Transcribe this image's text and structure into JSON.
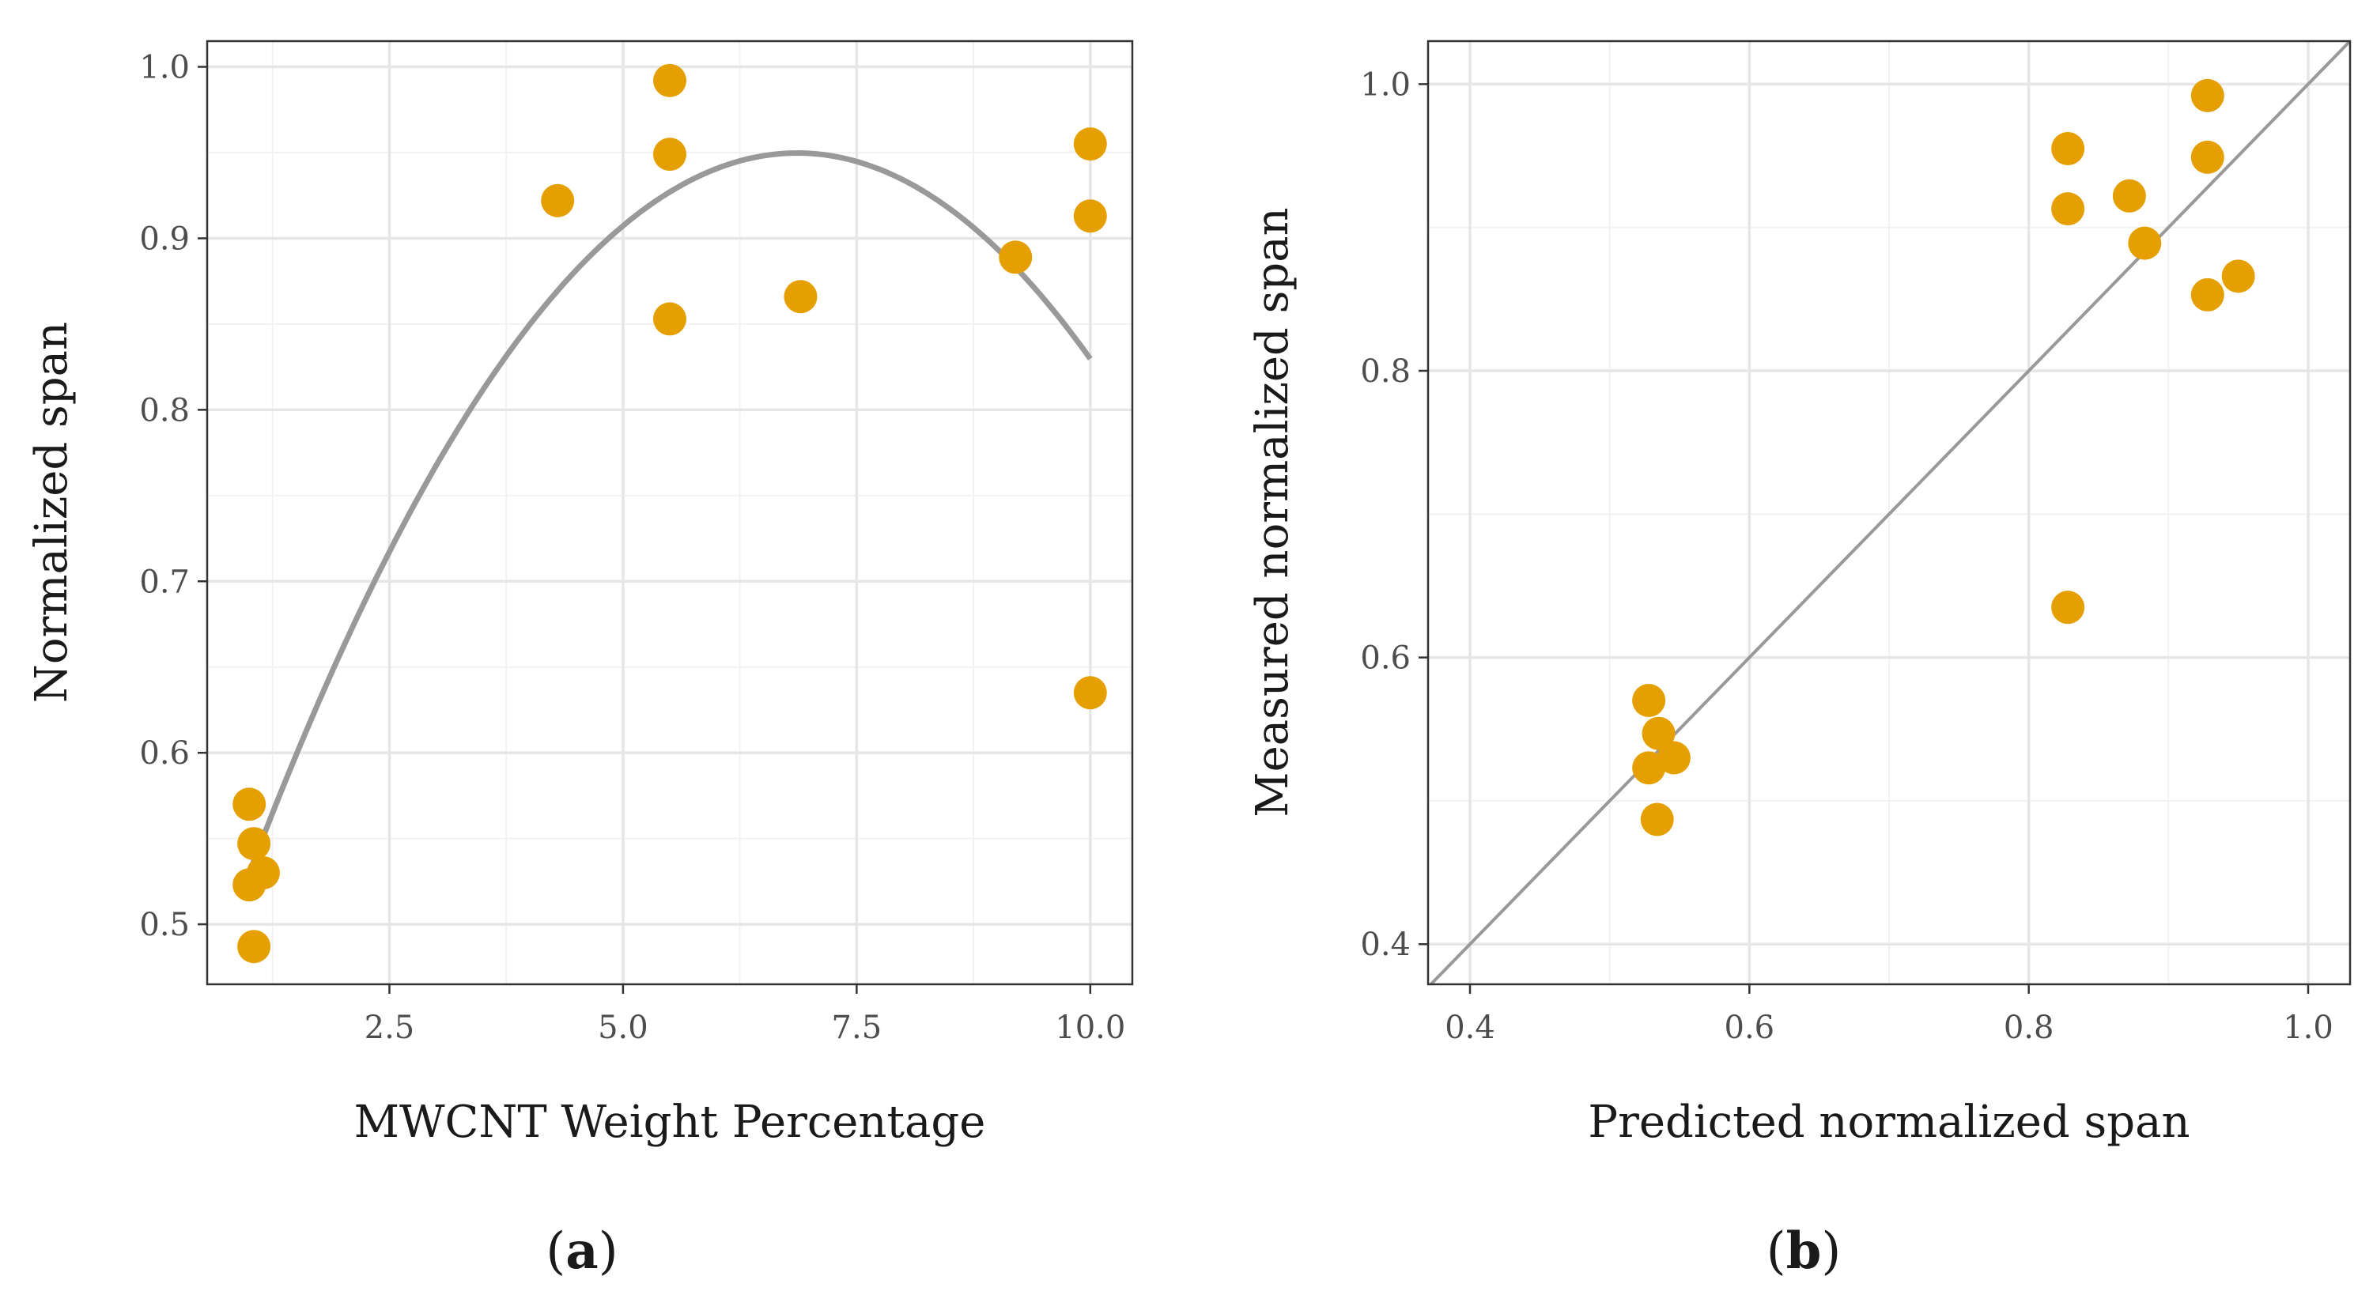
{
  "chart_data": [
    {
      "type": "scatter",
      "panel": "a",
      "caption_letter": "a",
      "xlabel": "MWCNT Weight Percentage",
      "ylabel": "Normalized span",
      "xlim": [
        0.55,
        10.45
      ],
      "ylim": [
        0.465,
        1.015
      ],
      "xticks": [
        2.5,
        5.0,
        7.5,
        10.0
      ],
      "xtick_labels": [
        "2.5",
        "5.0",
        "7.5",
        "10.0"
      ],
      "yticks": [
        0.5,
        0.6,
        0.7,
        0.8,
        0.9,
        1.0
      ],
      "ytick_labels": [
        "0.5",
        "0.6",
        "0.7",
        "0.8",
        "0.9",
        "1.0"
      ],
      "grid": true,
      "points": [
        {
          "x": 1.0,
          "y": 0.57
        },
        {
          "x": 1.05,
          "y": 0.547
        },
        {
          "x": 1.15,
          "y": 0.53
        },
        {
          "x": 1.0,
          "y": 0.523
        },
        {
          "x": 1.05,
          "y": 0.487
        },
        {
          "x": 4.3,
          "y": 0.922
        },
        {
          "x": 5.5,
          "y": 0.992
        },
        {
          "x": 5.5,
          "y": 0.949
        },
        {
          "x": 5.5,
          "y": 0.853
        },
        {
          "x": 6.9,
          "y": 0.866
        },
        {
          "x": 9.2,
          "y": 0.889
        },
        {
          "x": 10.0,
          "y": 0.955
        },
        {
          "x": 10.0,
          "y": 0.913
        },
        {
          "x": 10.0,
          "y": 0.635
        }
      ],
      "fit_curve": {
        "type": "quadratic",
        "points": [
          {
            "x": 1.0,
            "y": 0.53
          },
          {
            "x": 2.5,
            "y": 0.718
          },
          {
            "x": 5.0,
            "y": 0.905
          },
          {
            "x": 6.85,
            "y": 0.95
          },
          {
            "x": 8.5,
            "y": 0.92
          },
          {
            "x": 10.0,
            "y": 0.828
          }
        ]
      },
      "colors": {
        "points": "#E69F00",
        "line": "#999999"
      }
    },
    {
      "type": "scatter",
      "panel": "b",
      "caption_letter": "b",
      "xlabel": "Predicted normalized span",
      "ylabel": "Measured normalized span",
      "xlim": [
        0.37,
        1.03
      ],
      "ylim": [
        0.372,
        1.03
      ],
      "xticks": [
        0.4,
        0.6,
        0.8,
        1.0
      ],
      "xtick_labels": [
        "0.4",
        "0.6",
        "0.8",
        "1.0"
      ],
      "yticks": [
        0.4,
        0.6,
        0.8,
        1.0
      ],
      "ytick_labels": [
        "0.4",
        "0.6",
        "0.8",
        "1.0"
      ],
      "grid": true,
      "points": [
        {
          "x": 0.528,
          "y": 0.57
        },
        {
          "x": 0.535,
          "y": 0.547
        },
        {
          "x": 0.546,
          "y": 0.53
        },
        {
          "x": 0.528,
          "y": 0.523
        },
        {
          "x": 0.534,
          "y": 0.487
        },
        {
          "x": 0.828,
          "y": 0.955
        },
        {
          "x": 0.828,
          "y": 0.913
        },
        {
          "x": 0.872,
          "y": 0.922
        },
        {
          "x": 0.883,
          "y": 0.889
        },
        {
          "x": 0.928,
          "y": 0.992
        },
        {
          "x": 0.928,
          "y": 0.949
        },
        {
          "x": 0.928,
          "y": 0.853
        },
        {
          "x": 0.95,
          "y": 0.866
        },
        {
          "x": 0.828,
          "y": 0.635
        }
      ],
      "reference_line": {
        "type": "identity",
        "slope": 1,
        "intercept": 0
      },
      "colors": {
        "points": "#E69F00",
        "line": "#999999"
      }
    }
  ]
}
